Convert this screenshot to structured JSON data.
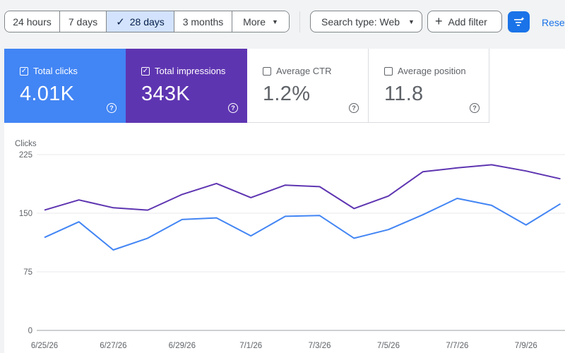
{
  "toolbar": {
    "date_ranges": [
      {
        "label": "24 hours",
        "active": false
      },
      {
        "label": "7 days",
        "active": false
      },
      {
        "label": "28 days",
        "active": true
      },
      {
        "label": "3 months",
        "active": false
      },
      {
        "label": "More",
        "active": false
      }
    ],
    "search_type_label": "Search type: Web",
    "add_filter_label": "Add filter",
    "reset_label": "Reset"
  },
  "cards": [
    {
      "label": "Total clicks",
      "value": "4.01K",
      "checked": true,
      "color": "#4285f4"
    },
    {
      "label": "Total impressions",
      "value": "343K",
      "checked": true,
      "color": "#5e35b1"
    },
    {
      "label": "Average CTR",
      "value": "1.2%",
      "checked": false,
      "color": "#ffffff"
    },
    {
      "label": "Average position",
      "value": "11.8",
      "checked": false,
      "color": "#ffffff"
    }
  ],
  "chart_data": {
    "type": "line",
    "ylabel": "Clicks",
    "y_ticks": [
      0,
      75,
      150,
      225
    ],
    "ylim": [
      0,
      225
    ],
    "x_tick_labels": [
      "6/25/26",
      "6/27/26",
      "6/29/26",
      "7/1/26",
      "7/3/26",
      "7/5/26",
      "7/7/26",
      "7/9/26"
    ],
    "x": [
      "6/25/26",
      "6/26/26",
      "6/27/26",
      "6/28/26",
      "6/29/26",
      "6/30/26",
      "7/1/26",
      "7/2/26",
      "7/3/26",
      "7/4/26",
      "7/5/26",
      "7/6/26",
      "7/7/26",
      "7/8/26",
      "7/9/26",
      "7/10/26"
    ],
    "series": [
      {
        "color": "#5e35b1",
        "values": [
          154,
          167,
          157,
          154,
          174,
          188,
          170,
          186,
          184,
          156,
          172,
          203,
          208,
          212,
          204,
          194
        ]
      },
      {
        "color": "#4285f4",
        "values": [
          119,
          139,
          103,
          118,
          142,
          144,
          121,
          146,
          147,
          118,
          129,
          148,
          169,
          160,
          135,
          162
        ]
      }
    ],
    "grid": true
  }
}
